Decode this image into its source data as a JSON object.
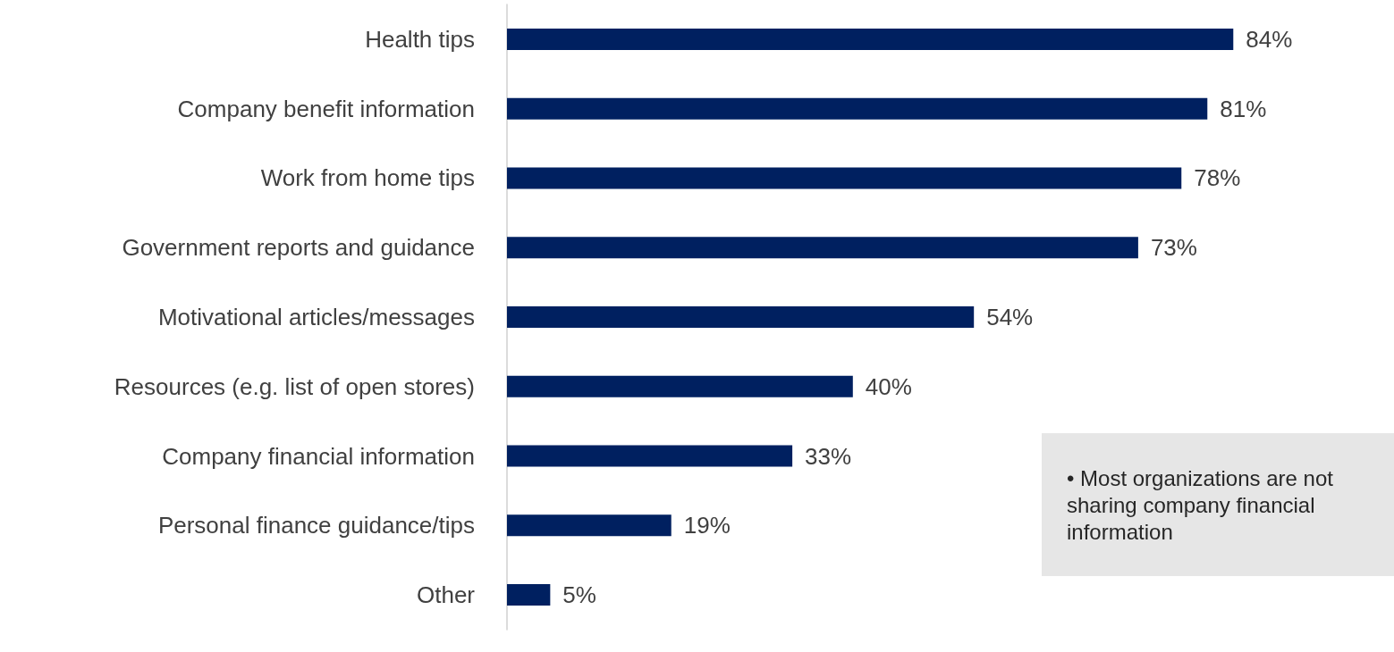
{
  "chart_data": {
    "type": "bar",
    "orientation": "horizontal",
    "categories": [
      "Health tips",
      "Company benefit information",
      "Work from home tips",
      "Government reports and guidance",
      "Motivational articles/messages",
      "Resources (e.g. list of open stores)",
      "Company financial information",
      "Personal finance guidance/tips",
      "Other"
    ],
    "values": [
      84,
      81,
      78,
      73,
      54,
      40,
      33,
      19,
      5
    ],
    "value_labels": [
      "84%",
      "81%",
      "78%",
      "73%",
      "54%",
      "40%",
      "33%",
      "19%",
      "5%"
    ],
    "color": "#002060",
    "tick_labels": "y",
    "grid": false,
    "annotations": [
      "• Most organizations are not sharing company financial information"
    ]
  }
}
